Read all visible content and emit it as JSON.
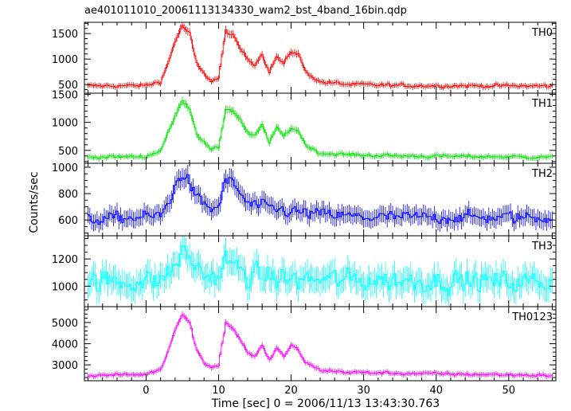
{
  "chart_data": {
    "type": "line",
    "title": "ae401011010_20061113134330_wam2_bst_4band_16bin.qdp",
    "xlabel": "Time [sec] 0 = 2006/11/13 13:43:30.763",
    "ylabel": "Counts/sec",
    "xlim": [
      -8.5,
      56.5
    ],
    "x_ticks": [
      0,
      10,
      20,
      30,
      40,
      50
    ],
    "error_bars": true,
    "grid": false,
    "legend": "none",
    "time_binning": {
      "start": -8,
      "end": 56,
      "step": 0.25
    },
    "panels": [
      {
        "name": "TH0",
        "color": "#ff0000",
        "ylim": [
          330,
          1720
        ],
        "y_ticks": [
          500,
          1000,
          1500
        ],
        "baseline": 470,
        "noise": 30,
        "profile": [
          {
            "t": -8,
            "v": 470
          },
          {
            "t": 0,
            "v": 480
          },
          {
            "t": 2,
            "v": 560
          },
          {
            "t": 3,
            "v": 900
          },
          {
            "t": 4,
            "v": 1350
          },
          {
            "t": 5,
            "v": 1650
          },
          {
            "t": 6,
            "v": 1500
          },
          {
            "t": 7,
            "v": 900
          },
          {
            "t": 8,
            "v": 700
          },
          {
            "t": 9,
            "v": 580
          },
          {
            "t": 10,
            "v": 620
          },
          {
            "t": 11,
            "v": 1550
          },
          {
            "t": 12,
            "v": 1450
          },
          {
            "t": 13,
            "v": 1200
          },
          {
            "t": 14,
            "v": 1000
          },
          {
            "t": 15,
            "v": 900
          },
          {
            "t": 16,
            "v": 1100
          },
          {
            "t": 17,
            "v": 750
          },
          {
            "t": 18,
            "v": 1050
          },
          {
            "t": 19,
            "v": 900
          },
          {
            "t": 20,
            "v": 1150
          },
          {
            "t": 21,
            "v": 1100
          },
          {
            "t": 22,
            "v": 750
          },
          {
            "t": 24,
            "v": 550
          },
          {
            "t": 28,
            "v": 500
          },
          {
            "t": 35,
            "v": 480
          },
          {
            "t": 56,
            "v": 470
          }
        ]
      },
      {
        "name": "TH1",
        "color": "#00e600",
        "ylim": [
          270,
          1520
        ],
        "y_ticks": [
          500,
          1000,
          1500
        ],
        "baseline": 380,
        "noise": 25,
        "profile": [
          {
            "t": -8,
            "v": 380
          },
          {
            "t": 0,
            "v": 390
          },
          {
            "t": 2,
            "v": 500
          },
          {
            "t": 3,
            "v": 800
          },
          {
            "t": 4,
            "v": 1100
          },
          {
            "t": 5,
            "v": 1400
          },
          {
            "t": 6,
            "v": 1250
          },
          {
            "t": 7,
            "v": 800
          },
          {
            "t": 8,
            "v": 650
          },
          {
            "t": 9,
            "v": 500
          },
          {
            "t": 10,
            "v": 550
          },
          {
            "t": 11,
            "v": 1250
          },
          {
            "t": 12,
            "v": 1200
          },
          {
            "t": 13,
            "v": 1050
          },
          {
            "t": 14,
            "v": 800
          },
          {
            "t": 15,
            "v": 750
          },
          {
            "t": 16,
            "v": 950
          },
          {
            "t": 17,
            "v": 650
          },
          {
            "t": 18,
            "v": 900
          },
          {
            "t": 19,
            "v": 750
          },
          {
            "t": 20,
            "v": 900
          },
          {
            "t": 21,
            "v": 850
          },
          {
            "t": 22,
            "v": 600
          },
          {
            "t": 24,
            "v": 450
          },
          {
            "t": 28,
            "v": 420
          },
          {
            "t": 35,
            "v": 400
          },
          {
            "t": 56,
            "v": 380
          }
        ]
      },
      {
        "name": "TH2",
        "color": "#0000ff",
        "ylim": [
          480,
          1030
        ],
        "y_ticks": [
          600,
          800,
          1000
        ],
        "baseline": 620,
        "noise": 40,
        "profile": [
          {
            "t": -8,
            "v": 600
          },
          {
            "t": 2,
            "v": 630
          },
          {
            "t": 3,
            "v": 720
          },
          {
            "t": 4,
            "v": 850
          },
          {
            "t": 5,
            "v": 960
          },
          {
            "t": 6,
            "v": 880
          },
          {
            "t": 7,
            "v": 760
          },
          {
            "t": 9,
            "v": 680
          },
          {
            "t": 10,
            "v": 700
          },
          {
            "t": 11,
            "v": 900
          },
          {
            "t": 12,
            "v": 880
          },
          {
            "t": 13,
            "v": 800
          },
          {
            "t": 14,
            "v": 720
          },
          {
            "t": 16,
            "v": 700
          },
          {
            "t": 18,
            "v": 680
          },
          {
            "t": 22,
            "v": 650
          },
          {
            "t": 30,
            "v": 620
          },
          {
            "t": 56,
            "v": 620
          }
        ]
      },
      {
        "name": "TH3",
        "color": "#00ffff",
        "ylim": [
          850,
          1370
        ],
        "y_ticks": [
          1000,
          1200
        ],
        "baseline": 1030,
        "noise": 70,
        "profile": [
          {
            "t": -8,
            "v": 1030
          },
          {
            "t": 2,
            "v": 1040
          },
          {
            "t": 4,
            "v": 1150
          },
          {
            "t": 5,
            "v": 1250
          },
          {
            "t": 6,
            "v": 1200
          },
          {
            "t": 8,
            "v": 1080
          },
          {
            "t": 10,
            "v": 1070
          },
          {
            "t": 11,
            "v": 1200
          },
          {
            "t": 12,
            "v": 1150
          },
          {
            "t": 14,
            "v": 1080
          },
          {
            "t": 20,
            "v": 1050
          },
          {
            "t": 56,
            "v": 1030
          }
        ]
      },
      {
        "name": "TH0123",
        "color": "#ff00ff",
        "ylim": [
          2250,
          5750
        ],
        "y_ticks": [
          3000,
          4000,
          5000
        ],
        "baseline": 2550,
        "noise": 60,
        "profile": [
          {
            "t": -8,
            "v": 2500
          },
          {
            "t": 0,
            "v": 2550
          },
          {
            "t": 2,
            "v": 2800
          },
          {
            "t": 3,
            "v": 3600
          },
          {
            "t": 4,
            "v": 4700
          },
          {
            "t": 5,
            "v": 5400
          },
          {
            "t": 6,
            "v": 5000
          },
          {
            "t": 7,
            "v": 3700
          },
          {
            "t": 8,
            "v": 3100
          },
          {
            "t": 9,
            "v": 2900
          },
          {
            "t": 10,
            "v": 3000
          },
          {
            "t": 11,
            "v": 5000
          },
          {
            "t": 12,
            "v": 4700
          },
          {
            "t": 13,
            "v": 4200
          },
          {
            "t": 14,
            "v": 3600
          },
          {
            "t": 15,
            "v": 3400
          },
          {
            "t": 16,
            "v": 3900
          },
          {
            "t": 17,
            "v": 3200
          },
          {
            "t": 18,
            "v": 3800
          },
          {
            "t": 19,
            "v": 3400
          },
          {
            "t": 20,
            "v": 3900
          },
          {
            "t": 21,
            "v": 3700
          },
          {
            "t": 22,
            "v": 3100
          },
          {
            "t": 24,
            "v": 2750
          },
          {
            "t": 28,
            "v": 2650
          },
          {
            "t": 35,
            "v": 2600
          },
          {
            "t": 56,
            "v": 2500
          }
        ]
      }
    ]
  }
}
